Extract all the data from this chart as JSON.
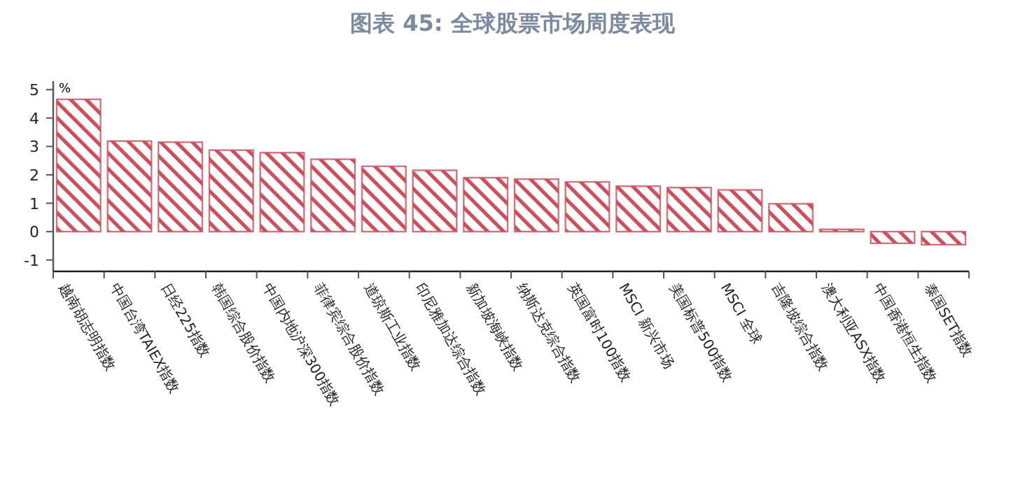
{
  "chart_data": {
    "type": "bar",
    "title": "图表 45: 全球股票市场周度表现",
    "ylabel": "%",
    "categories": [
      "越南胡志明指数",
      "中国台湾TAIEX指数",
      "日经225指数",
      "韩国综合股价指数",
      "中国内地沪深300指数",
      "菲律宾综合股价指数",
      "道琼斯工业指数",
      "印尼雅加达综合指数",
      "新加坡海峡指数",
      "纳斯达克综合指数",
      "英国富时100指数",
      "MSCI  新兴市场",
      "美国标普500指数",
      "MSCI  全球",
      "吉隆坡综合指数",
      "澳大利亚ASX指数",
      "中国香港恒生指数",
      "泰国SET指数"
    ],
    "values": [
      4.66,
      3.19,
      3.15,
      2.87,
      2.78,
      2.55,
      2.3,
      2.16,
      1.9,
      1.85,
      1.75,
      1.6,
      1.55,
      1.47,
      0.98,
      0.08,
      -0.41,
      -0.46
    ],
    "color": "#c8505f",
    "ylim": [
      -1.4,
      5.3
    ],
    "yticks": [
      -1,
      0,
      1,
      2,
      3,
      4,
      5
    ]
  }
}
